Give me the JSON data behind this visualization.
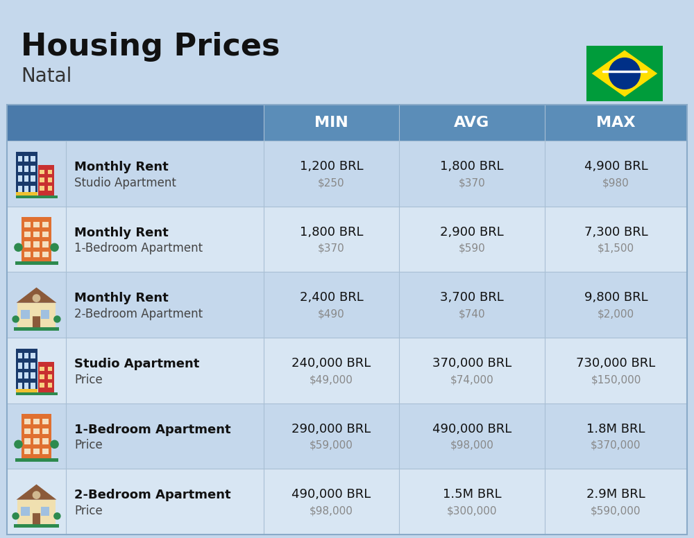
{
  "title": "Housing Prices",
  "subtitle": "Natal",
  "background_color": "#c5d8ec",
  "header_bg_color": "#5b8db8",
  "header_text_color": "#ffffff",
  "row_bg_colors": [
    "#c5d8ec",
    "#d8e6f3"
  ],
  "col_header_labels": [
    "MIN",
    "AVG",
    "MAX"
  ],
  "rows": [
    {
      "bold_label": "Monthly Rent",
      "sub_label": "Studio Apartment",
      "icon_type": "blue_red_tower",
      "min_brl": "1,200 BRL",
      "min_usd": "$250",
      "avg_brl": "1,800 BRL",
      "avg_usd": "$370",
      "max_brl": "4,900 BRL",
      "max_usd": "$980"
    },
    {
      "bold_label": "Monthly Rent",
      "sub_label": "1-Bedroom Apartment",
      "icon_type": "orange_building",
      "min_brl": "1,800 BRL",
      "min_usd": "$370",
      "avg_brl": "2,900 BRL",
      "avg_usd": "$590",
      "max_brl": "7,300 BRL",
      "max_usd": "$1,500"
    },
    {
      "bold_label": "Monthly Rent",
      "sub_label": "2-Bedroom Apartment",
      "icon_type": "beige_house",
      "min_brl": "2,400 BRL",
      "min_usd": "$490",
      "avg_brl": "3,700 BRL",
      "avg_usd": "$740",
      "max_brl": "9,800 BRL",
      "max_usd": "$2,000"
    },
    {
      "bold_label": "Studio Apartment",
      "sub_label": "Price",
      "icon_type": "blue_red_tower",
      "min_brl": "240,000 BRL",
      "min_usd": "$49,000",
      "avg_brl": "370,000 BRL",
      "avg_usd": "$74,000",
      "max_brl": "730,000 BRL",
      "max_usd": "$150,000"
    },
    {
      "bold_label": "1-Bedroom Apartment",
      "sub_label": "Price",
      "icon_type": "orange_building",
      "min_brl": "290,000 BRL",
      "min_usd": "$59,000",
      "avg_brl": "490,000 BRL",
      "avg_usd": "$98,000",
      "max_brl": "1.8M BRL",
      "max_usd": "$370,000"
    },
    {
      "bold_label": "2-Bedroom Apartment",
      "sub_label": "Price",
      "icon_type": "beige_house",
      "min_brl": "490,000 BRL",
      "min_usd": "$98,000",
      "avg_brl": "1.5M BRL",
      "avg_usd": "$300,000",
      "max_brl": "2.9M BRL",
      "max_usd": "$590,000"
    }
  ],
  "icon_colors": {
    "blue_tower_main": "#1a3a6b",
    "blue_tower_accent": "#e84040",
    "blue_tower_window": "#ffffff",
    "blue_tower_ground": "#2d8a4e",
    "orange_building_main": "#e07030",
    "orange_building_window": "#ffffff",
    "orange_building_ground": "#2d8a4e",
    "beige_house_main": "#f0e0b0",
    "beige_house_roof": "#8b5a3a",
    "beige_house_door": "#8b5a3a",
    "beige_house_window": "#a0c0e0",
    "beige_house_ground": "#2d8a4e"
  }
}
